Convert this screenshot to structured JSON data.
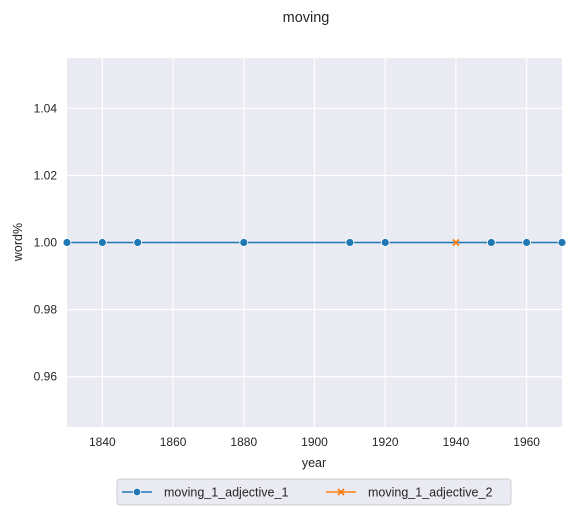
{
  "chart_data": {
    "type": "line",
    "title": "moving",
    "xlabel": "year",
    "ylabel": "word%",
    "xlim": [
      1830,
      1970
    ],
    "ylim": [
      0.945,
      1.055
    ],
    "xticks": [
      1840,
      1860,
      1880,
      1900,
      1920,
      1940,
      1960
    ],
    "yticks": [
      0.96,
      0.98,
      1.0,
      1.02,
      1.04
    ],
    "ytick_labels": [
      "0.96",
      "0.98",
      "1.00",
      "1.02",
      "1.04"
    ],
    "grid": true,
    "legend_position": "bottom-center",
    "series": [
      {
        "name": "moving_1_adjective_1",
        "color": "#1f77b4",
        "marker": "circle",
        "x": [
          1830,
          1840,
          1850,
          1880,
          1910,
          1920,
          1950,
          1960,
          1970
        ],
        "y": [
          1,
          1,
          1,
          1,
          1,
          1,
          1,
          1,
          1
        ]
      },
      {
        "name": "moving_1_adjective_2",
        "color": "#ff7f0e",
        "marker": "x",
        "x": [
          1940
        ],
        "y": [
          1
        ]
      }
    ],
    "plot_background": "#eaeaf2",
    "grid_color": "#ffffff"
  }
}
